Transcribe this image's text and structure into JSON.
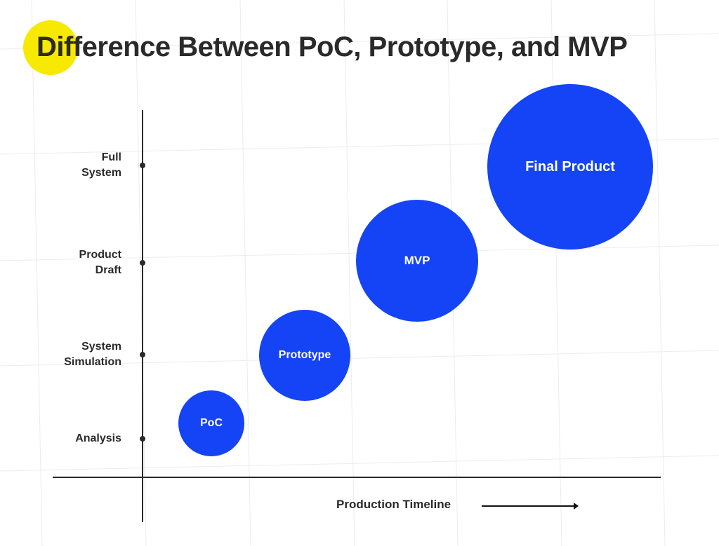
{
  "title": "Difference Between PoC, Prototype, and MVP",
  "colors": {
    "bubble": "#1444f5",
    "highlight": "#f7e900",
    "text": "#2a2a2a"
  },
  "chart_data": {
    "type": "bubble",
    "xlabel": "Production Timeline",
    "y_levels": [
      "Analysis",
      "System Simulation",
      "Product Draft",
      "Full System"
    ],
    "y_level_lines": [
      [
        "Analysis"
      ],
      [
        "System",
        "Simulation"
      ],
      [
        "Product",
        "Draft"
      ],
      [
        "Full",
        "System"
      ]
    ],
    "points": [
      {
        "label": "PoC",
        "stage": "Analysis"
      },
      {
        "label": "Prototype",
        "stage": "System Simulation"
      },
      {
        "label": "MVP",
        "stage": "Product Draft"
      },
      {
        "label": "Final Product",
        "stage": "Full System"
      }
    ]
  }
}
